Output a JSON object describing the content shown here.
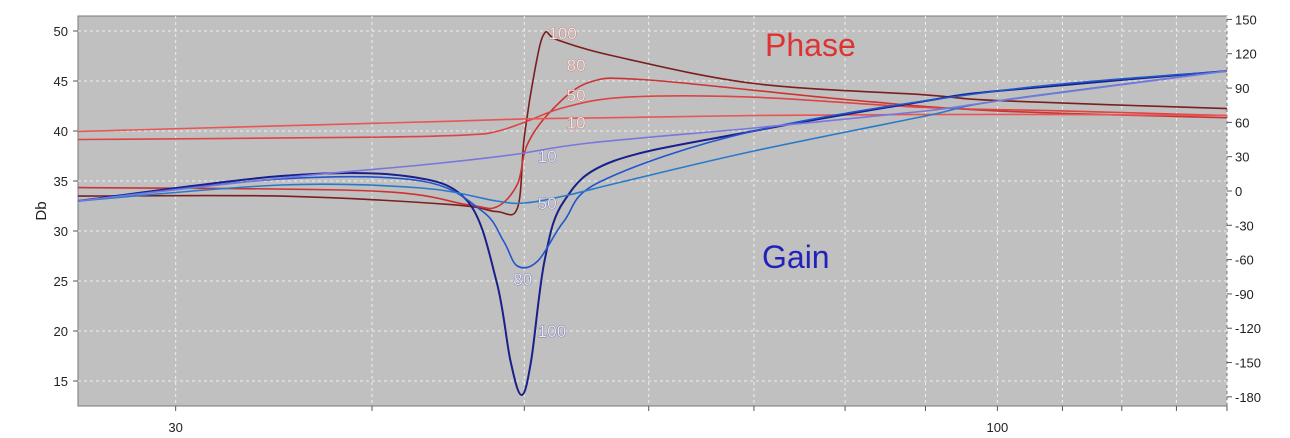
{
  "chart_data": {
    "type": "line",
    "title": "",
    "xlabel": "",
    "ylabel": "Db",
    "x_scale": "log",
    "xlim": [
      26,
      140
    ],
    "ylim_left": [
      12.5,
      51.5
    ],
    "ylim_right": [
      -188,
      153
    ],
    "grid": true,
    "x_ticks": [
      "30",
      "100"
    ],
    "y_ticks_left": [
      "15",
      "20",
      "25",
      "30",
      "35",
      "40",
      "45",
      "50"
    ],
    "y_ticks_right": [
      "-180",
      "-150",
      "-120",
      "-90",
      "-60",
      "-30",
      "0",
      "30",
      "60",
      "90",
      "120",
      "150"
    ],
    "annotations": [
      {
        "text": "Phase",
        "color": "#dd3333"
      },
      {
        "text": "Gain",
        "color": "#2222bb"
      }
    ],
    "phase_series": [
      {
        "label": "100",
        "color": "#7a1e1e",
        "points": [
          [
            26,
            -4.5
          ],
          [
            35,
            -4.5
          ],
          [
            45,
            -12
          ],
          [
            48,
            -18
          ],
          [
            49.5,
            -15
          ],
          [
            50,
            47
          ],
          [
            50.8,
            107
          ],
          [
            51.5,
            138
          ],
          [
            52.5,
            132
          ],
          [
            57,
            118
          ],
          [
            70,
            94
          ],
          [
            90,
            84
          ],
          [
            100,
            79
          ],
          [
            140,
            72
          ]
        ]
      },
      {
        "label": "80",
        "color": "#cc3333",
        "points": [
          [
            26,
            3
          ],
          [
            40,
            0
          ],
          [
            46,
            -12
          ],
          [
            48,
            -14
          ],
          [
            49.5,
            6
          ],
          [
            50.2,
            40
          ],
          [
            52,
            70
          ],
          [
            55,
            95
          ],
          [
            60,
            97
          ],
          [
            80,
            80
          ],
          [
            100,
            70
          ],
          [
            140,
            64
          ]
        ]
      },
      {
        "label": "50",
        "color": "#dd4444",
        "points": [
          [
            26,
            45
          ],
          [
            40,
            47
          ],
          [
            46,
            49
          ],
          [
            48,
            52
          ],
          [
            50,
            60
          ],
          [
            53,
            73
          ],
          [
            58,
            82
          ],
          [
            70,
            82
          ],
          [
            90,
            73
          ],
          [
            110,
            70
          ],
          [
            140,
            66
          ]
        ]
      },
      {
        "label": "10",
        "color": "#e85555",
        "points": [
          [
            26,
            52
          ],
          [
            35,
            57
          ],
          [
            45,
            61
          ],
          [
            50,
            63
          ],
          [
            56,
            64
          ],
          [
            70,
            66
          ],
          [
            100,
            67
          ],
          [
            140,
            66
          ]
        ]
      }
    ],
    "gain_series": [
      {
        "label": "100",
        "color": "#18208a",
        "points": [
          [
            26,
            33
          ],
          [
            35,
            35.5
          ],
          [
            42,
            35.5
          ],
          [
            46,
            33
          ],
          [
            48,
            25
          ],
          [
            49,
            17
          ],
          [
            49.8,
            13.6
          ],
          [
            50.5,
            17
          ],
          [
            51.5,
            27
          ],
          [
            53,
            33
          ],
          [
            57,
            37
          ],
          [
            70,
            40
          ],
          [
            90,
            43
          ],
          [
            100,
            44
          ],
          [
            140,
            46
          ]
        ]
      },
      {
        "label": "80",
        "color": "#2255cc",
        "points": [
          [
            26,
            33
          ],
          [
            35,
            35.2
          ],
          [
            43,
            35
          ],
          [
            47,
            32
          ],
          [
            48.5,
            29
          ],
          [
            49.5,
            26.5
          ],
          [
            51,
            27
          ],
          [
            53,
            31
          ],
          [
            56,
            35
          ],
          [
            70,
            40
          ],
          [
            100,
            44
          ],
          [
            140,
            46
          ]
        ]
      },
      {
        "label": "50",
        "color": "#2a7ac8",
        "points": [
          [
            26,
            33
          ],
          [
            35,
            34.6
          ],
          [
            43,
            34.3
          ],
          [
            48,
            33
          ],
          [
            50,
            32.8
          ],
          [
            53,
            33.5
          ],
          [
            58,
            35
          ],
          [
            70,
            38
          ],
          [
            90,
            41.5
          ],
          [
            100,
            43
          ],
          [
            140,
            46
          ]
        ]
      },
      {
        "label": "10",
        "color": "#7777dd",
        "points": [
          [
            26,
            33
          ],
          [
            35,
            35.3
          ],
          [
            43,
            36.6
          ],
          [
            49,
            37.6
          ],
          [
            55,
            38.8
          ],
          [
            70,
            40.3
          ],
          [
            90,
            42
          ],
          [
            100,
            43
          ],
          [
            140,
            46
          ]
        ]
      }
    ]
  }
}
